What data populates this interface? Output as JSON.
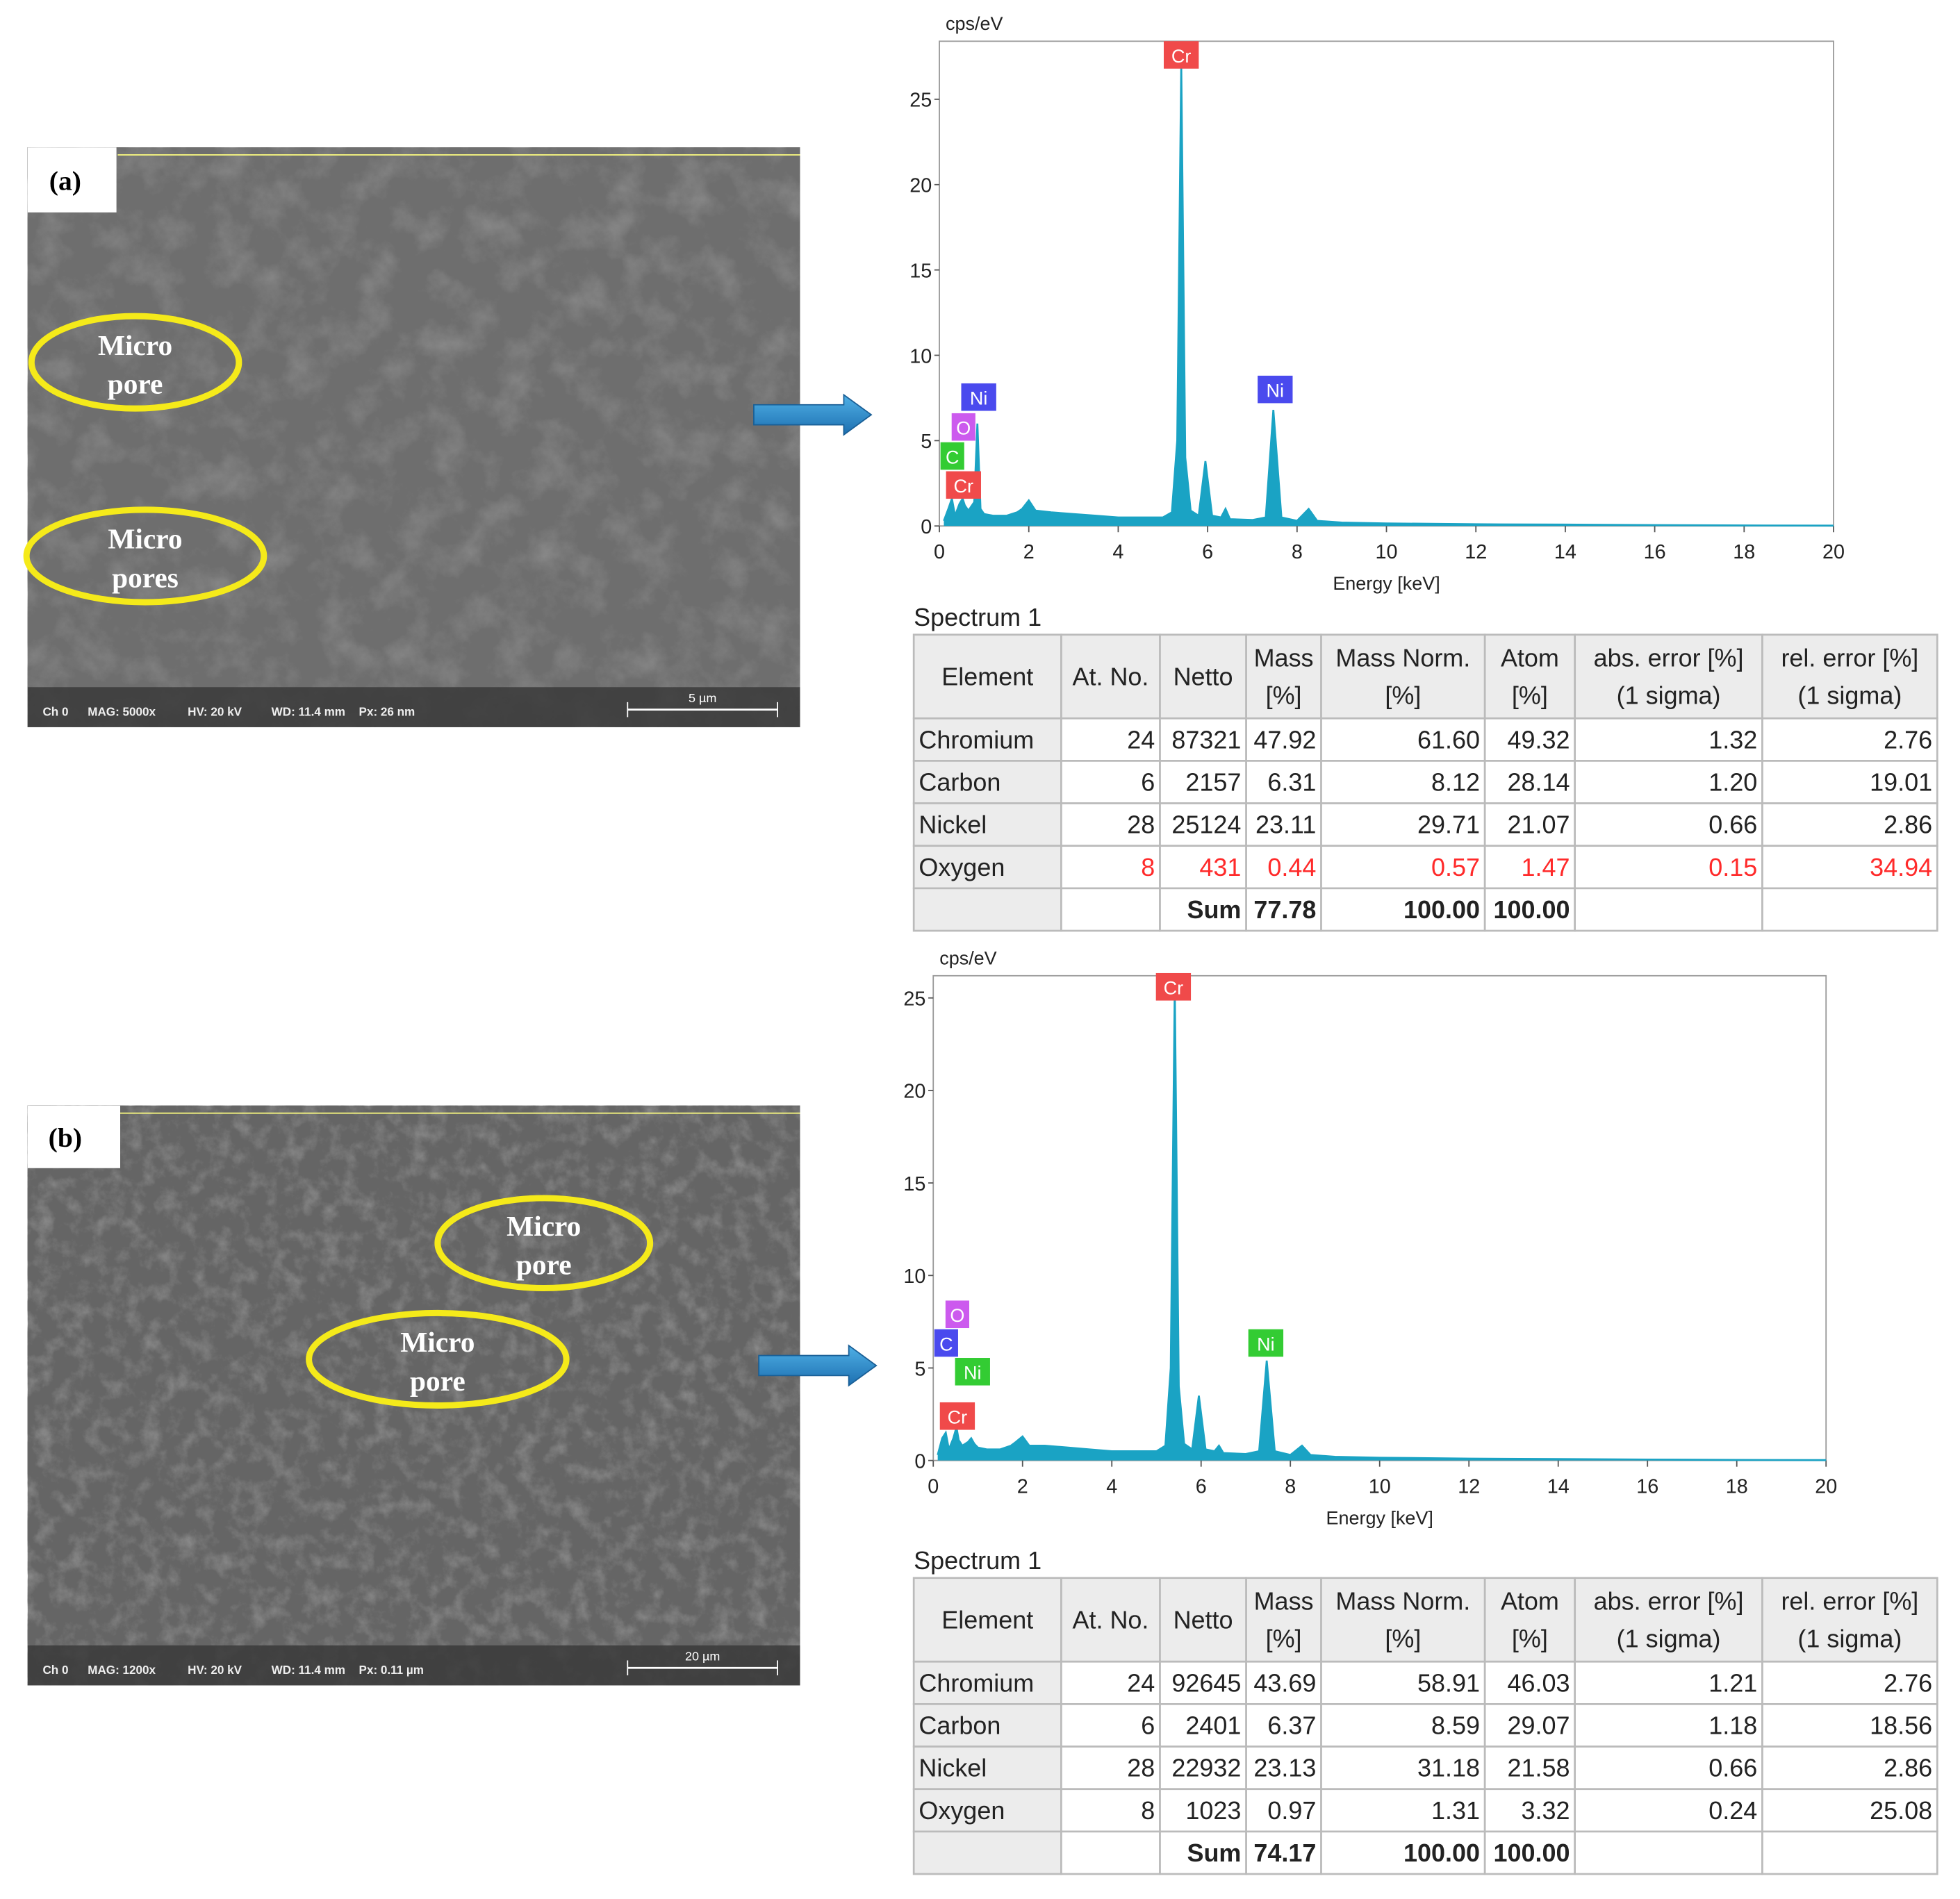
{
  "chart_data": [
    {
      "type": "area",
      "y_label": "cps/eV",
      "x_label": "Energy [keV]",
      "color": "#1aa3c4",
      "xlim": [
        0,
        20
      ],
      "ylim": [
        0,
        28.4
      ],
      "xticks": [
        0,
        2,
        4,
        6,
        8,
        10,
        12,
        14,
        16,
        18,
        20
      ],
      "yticks": [
        0,
        5,
        10,
        15,
        20,
        25
      ],
      "x": [
        0.1,
        0.2,
        0.28,
        0.35,
        0.45,
        0.52,
        0.57,
        0.65,
        0.78,
        0.85,
        0.92,
        1.0,
        1.2,
        1.5,
        1.74,
        1.85,
        2.0,
        2.15,
        2.5,
        3.0,
        3.5,
        4.0,
        4.5,
        5.0,
        5.2,
        5.32,
        5.41,
        5.5,
        5.62,
        5.8,
        5.95,
        6.1,
        6.3,
        6.4,
        6.5,
        7.0,
        7.3,
        7.47,
        7.65,
        8.0,
        8.26,
        8.45,
        9,
        10,
        12,
        14,
        16,
        18,
        20
      ],
      "values": [
        0.3,
        1.0,
        1.6,
        0.6,
        1.3,
        1.6,
        1.2,
        0.9,
        1.4,
        6.0,
        1.0,
        0.7,
        0.6,
        0.6,
        0.8,
        1.0,
        1.5,
        0.9,
        0.8,
        0.7,
        0.6,
        0.5,
        0.5,
        0.5,
        0.8,
        5,
        27,
        4,
        0.9,
        0.6,
        3.8,
        0.6,
        0.5,
        1.0,
        0.4,
        0.35,
        0.5,
        6.8,
        0.5,
        0.3,
        1.0,
        0.3,
        0.2,
        0.15,
        0.1,
        0.08,
        0.05,
        0.03,
        0.02
      ],
      "peak_labels": [
        {
          "text": "Cr",
          "color": "#f04a4a",
          "x": 5.41,
          "y": 27.6
        },
        {
          "text": "Ni",
          "color": "#4a4aee",
          "x": 0.88,
          "y": 7.55
        },
        {
          "text": "O",
          "color": "#cc5aee",
          "x": 0.54,
          "y": 5.8
        },
        {
          "text": "C",
          "color": "#33cc33",
          "x": 0.29,
          "y": 4.1
        },
        {
          "text": "Cr",
          "color": "#f04a4a",
          "x": 0.54,
          "y": 2.4
        },
        {
          "text": "Ni",
          "color": "#4a4aee",
          "x": 7.51,
          "y": 8.0
        }
      ]
    },
    {
      "type": "area",
      "y_label": "cps/eV",
      "x_label": "Energy [keV]",
      "color": "#1aa3c4",
      "xlim": [
        0,
        20
      ],
      "ylim": [
        0,
        26.2
      ],
      "xticks": [
        0,
        2,
        4,
        6,
        8,
        10,
        12,
        14,
        16,
        18,
        20
      ],
      "yticks": [
        0,
        5,
        10,
        15,
        20,
        25
      ],
      "x": [
        0.1,
        0.2,
        0.28,
        0.35,
        0.45,
        0.52,
        0.57,
        0.65,
        0.78,
        0.85,
        0.92,
        1.0,
        1.2,
        1.5,
        1.74,
        1.85,
        2.0,
        2.15,
        2.5,
        3.0,
        3.5,
        4.0,
        4.5,
        5.0,
        5.2,
        5.32,
        5.41,
        5.5,
        5.62,
        5.8,
        5.95,
        6.1,
        6.3,
        6.4,
        6.5,
        7.0,
        7.3,
        7.47,
        7.65,
        8.0,
        8.26,
        8.45,
        9,
        10,
        12,
        14,
        16,
        18,
        20
      ],
      "values": [
        0.3,
        1.2,
        1.5,
        0.6,
        1.2,
        1.8,
        1.1,
        0.8,
        1.0,
        1.2,
        0.9,
        0.7,
        0.6,
        0.6,
        0.8,
        1.0,
        1.3,
        0.8,
        0.8,
        0.7,
        0.6,
        0.5,
        0.5,
        0.5,
        0.8,
        5,
        25.6,
        4,
        0.9,
        0.6,
        3.5,
        0.6,
        0.5,
        0.8,
        0.4,
        0.35,
        0.5,
        5.4,
        0.5,
        0.3,
        0.8,
        0.3,
        0.2,
        0.15,
        0.1,
        0.08,
        0.05,
        0.03,
        0.02
      ],
      "peak_labels": [
        {
          "text": "Cr",
          "color": "#f04a4a",
          "x": 5.38,
          "y": 25.6
        },
        {
          "text": "O",
          "color": "#cc5aee",
          "x": 0.54,
          "y": 7.9
        },
        {
          "text": "C",
          "color": "#4a4aee",
          "x": 0.29,
          "y": 6.35
        },
        {
          "text": "Ni",
          "color": "#33cc33",
          "x": 0.88,
          "y": 4.8
        },
        {
          "text": "Cr",
          "color": "#f04a4a",
          "x": 0.54,
          "y": 2.4
        },
        {
          "text": "Ni",
          "color": "#33cc33",
          "x": 7.45,
          "y": 6.35
        }
      ]
    }
  ],
  "panels": [
    {
      "label": "(a)",
      "info": [
        "Ch 0",
        "MAG: 5000x",
        "HV: 20 kV",
        "WD: 11.4 mm",
        "Px: 26 nm"
      ],
      "scale": "5 µm",
      "annotations": [
        [
          "Micro",
          "pore"
        ],
        [
          "Micro",
          "pores"
        ]
      ],
      "table": {
        "title": "Spectrum 1",
        "header": [
          [
            "Element"
          ],
          [
            "At. No."
          ],
          [
            "Netto"
          ],
          [
            "Mass",
            "[%]"
          ],
          [
            "Mass Norm.",
            "[%]"
          ],
          [
            "Atom",
            "[%]"
          ],
          [
            "abs. error [%]",
            "(1 sigma)"
          ],
          [
            "rel. error [%]",
            "(1 sigma)"
          ]
        ],
        "rows": [
          [
            "Chromium",
            "24",
            "87321",
            "47.92",
            "61.60",
            "49.32",
            "1.32",
            "2.76"
          ],
          [
            "Carbon",
            "6",
            "2157",
            "6.31",
            "8.12",
            "28.14",
            "1.20",
            "19.01"
          ],
          [
            "Nickel",
            "28",
            "25124",
            "23.11",
            "29.71",
            "21.07",
            "0.66",
            "2.86"
          ],
          [
            "Oxygen",
            "8",
            "431",
            "0.44",
            "0.57",
            "1.47",
            "0.15",
            "34.94"
          ],
          [
            null,
            null,
            "Sum",
            "77.78",
            "100.00",
            "100.00",
            null,
            null
          ]
        ],
        "highlight": {
          "row": 3,
          "color": "#ff2a2a"
        }
      }
    },
    {
      "label": "(b)",
      "info": [
        "Ch 0",
        "MAG: 1200x",
        "HV: 20 kV",
        "WD: 11.4 mm",
        "Px: 0.11 µm"
      ],
      "scale": "20 µm",
      "annotations": [
        [
          "Micro",
          "pore"
        ],
        [
          "Micro",
          "pore"
        ]
      ],
      "table": {
        "title": "Spectrum 1",
        "header": [
          [
            "Element"
          ],
          [
            "At. No."
          ],
          [
            "Netto"
          ],
          [
            "Mass",
            "[%]"
          ],
          [
            "Mass Norm.",
            "[%]"
          ],
          [
            "Atom",
            "[%]"
          ],
          [
            "abs. error [%]",
            "(1 sigma)"
          ],
          [
            "rel. error [%]",
            "(1 sigma)"
          ]
        ],
        "rows": [
          [
            "Chromium",
            "24",
            "92645",
            "43.69",
            "58.91",
            "46.03",
            "1.21",
            "2.76"
          ],
          [
            "Carbon",
            "6",
            "2401",
            "6.37",
            "8.59",
            "29.07",
            "1.18",
            "18.56"
          ],
          [
            "Nickel",
            "28",
            "22932",
            "23.13",
            "31.18",
            "21.58",
            "0.66",
            "2.86"
          ],
          [
            "Oxygen",
            "8",
            "1023",
            "0.97",
            "1.31",
            "3.32",
            "0.24",
            "25.08"
          ],
          [
            null,
            null,
            "Sum",
            "74.17",
            "100.00",
            "100.00",
            null,
            null
          ]
        ]
      }
    }
  ]
}
